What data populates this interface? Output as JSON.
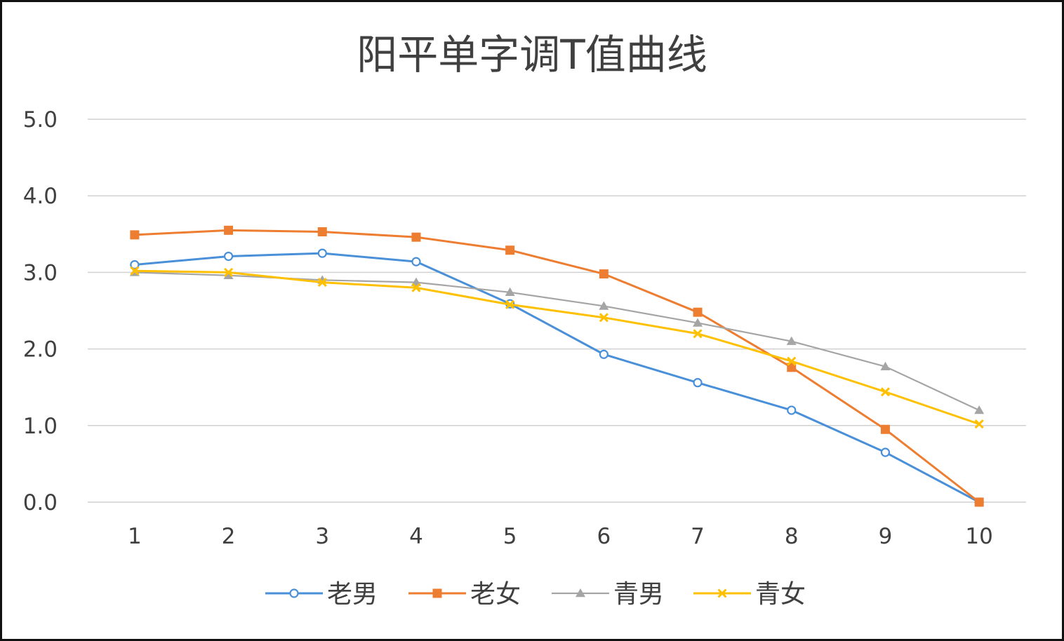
{
  "chart_data": {
    "type": "line",
    "title": "阳平单字调T值曲线",
    "xlabel": "",
    "ylabel": "",
    "categories": [
      "1",
      "2",
      "3",
      "4",
      "5",
      "6",
      "7",
      "8",
      "9",
      "10"
    ],
    "ylim": [
      0,
      5
    ],
    "yticks": [
      "0.0",
      "1.0",
      "2.0",
      "3.0",
      "4.0",
      "5.0"
    ],
    "grid": true,
    "legend_position": "bottom",
    "series": [
      {
        "name": "老男",
        "color": "#4a90d9",
        "marker": "circle",
        "values": [
          3.1,
          3.21,
          3.25,
          3.14,
          2.59,
          1.93,
          1.56,
          1.2,
          0.65,
          0.0
        ]
      },
      {
        "name": "老女",
        "color": "#ed7d31",
        "marker": "square",
        "values": [
          3.49,
          3.55,
          3.53,
          3.46,
          3.29,
          2.98,
          2.48,
          1.76,
          0.95,
          0.0
        ]
      },
      {
        "name": "青男",
        "color": "#a5a5a5",
        "marker": "triangle",
        "values": [
          3.0,
          2.96,
          2.9,
          2.87,
          2.74,
          2.56,
          2.34,
          2.1,
          1.77,
          1.2
        ]
      },
      {
        "name": "青女",
        "color": "#ffc000",
        "marker": "x",
        "values": [
          3.02,
          3.0,
          2.87,
          2.8,
          2.58,
          2.41,
          2.2,
          1.84,
          1.44,
          1.02
        ]
      }
    ]
  }
}
